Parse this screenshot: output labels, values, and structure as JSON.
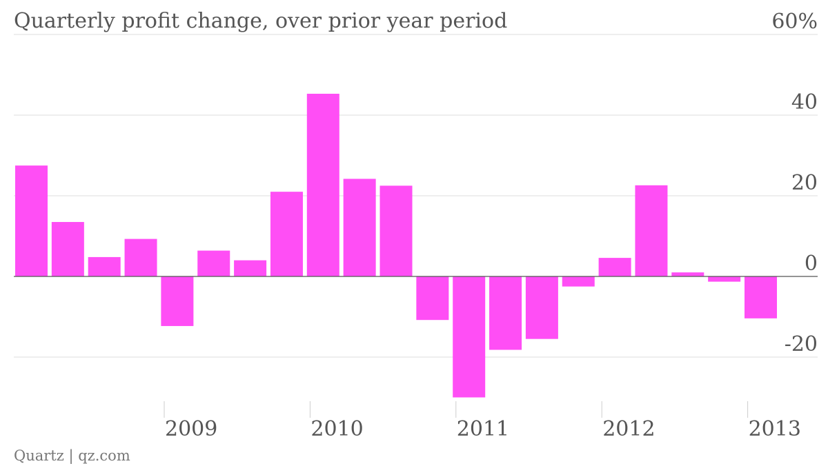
{
  "chart_data": {
    "type": "bar",
    "title": "Quarterly profit change, over prior year period",
    "source": "Quartz | qz.com",
    "unit_label": "60%",
    "ylim": [
      -30,
      60
    ],
    "y_ticks": [
      {
        "value": 60,
        "label": "60%"
      },
      {
        "value": 40,
        "label": "40"
      },
      {
        "value": 20,
        "label": "20"
      },
      {
        "value": 0,
        "label": "0"
      },
      {
        "value": -20,
        "label": "-20"
      }
    ],
    "x_ticks": [
      "2009",
      "2010",
      "2011",
      "2012",
      "2013"
    ],
    "grid": true,
    "values": [
      27.5,
      13.5,
      4.8,
      9.3,
      -12.3,
      6.4,
      4.0,
      21.0,
      45.3,
      24.2,
      22.5,
      -10.8,
      -30.0,
      -18.2,
      -15.5,
      -2.5,
      4.6,
      22.6,
      1.0,
      -1.3,
      -10.4
    ],
    "bar_color": "#ff4ef5"
  }
}
